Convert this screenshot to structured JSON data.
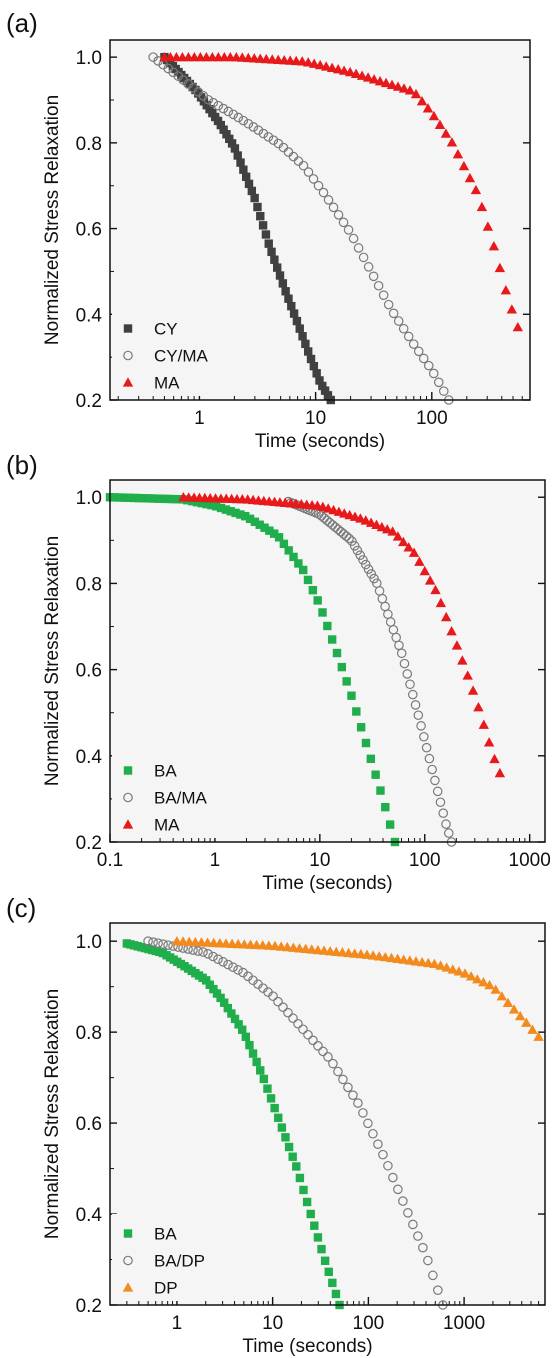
{
  "chart_data": [
    {
      "panel_label": "(a)",
      "type": "scatter",
      "xlabel": "Time (seconds)",
      "ylabel": "Normalized Stress Relaxation",
      "xscale": "log",
      "xlim": [
        0.17,
        700
      ],
      "ylim": [
        0.2,
        1.04
      ],
      "xticks": [
        1,
        10,
        100
      ],
      "xtick_labels": [
        "1",
        "10",
        "100"
      ],
      "yticks": [
        0.2,
        0.4,
        0.6,
        0.8,
        1.0
      ],
      "ytick_labels": [
        "0.2",
        "0.4",
        "0.6",
        "0.8",
        "1.0"
      ],
      "legend_position": "bottom-left",
      "series": [
        {
          "name": "CY",
          "marker": "square",
          "color": "#404040",
          "curve": [
            [
              0.5,
              1.0
            ],
            [
              0.95,
              0.92
            ],
            [
              1.5,
              0.845
            ],
            [
              2.0,
              0.79
            ],
            [
              3.0,
              0.67
            ],
            [
              4.0,
              0.56
            ],
            [
              5.5,
              0.455
            ],
            [
              7.0,
              0.38
            ],
            [
              9.0,
              0.3
            ],
            [
              11.0,
              0.24
            ],
            [
              13.5,
              0.2
            ]
          ]
        },
        {
          "name": "CY/MA",
          "marker": "circle-open",
          "color": "#7a7a7a",
          "curve": [
            [
              0.4,
              1.0
            ],
            [
              0.7,
              0.95
            ],
            [
              1.2,
              0.9
            ],
            [
              2.0,
              0.865
            ],
            [
              3.0,
              0.835
            ],
            [
              5.0,
              0.795
            ],
            [
              8.0,
              0.745
            ],
            [
              12.0,
              0.68
            ],
            [
              20.0,
              0.59
            ],
            [
              30.0,
              0.5
            ],
            [
              45.0,
              0.41
            ],
            [
              70.0,
              0.33
            ],
            [
              100.0,
              0.27
            ],
            [
              140.0,
              0.2
            ]
          ]
        },
        {
          "name": "MA",
          "marker": "triangle",
          "color": "#e8191b",
          "curve": [
            [
              0.5,
              1.0
            ],
            [
              2.0,
              1.0
            ],
            [
              8.0,
              0.99
            ],
            [
              20.0,
              0.965
            ],
            [
              40.0,
              0.94
            ],
            [
              70.0,
              0.92
            ],
            [
              100.0,
              0.87
            ],
            [
              150.0,
              0.8
            ],
            [
              250.0,
              0.68
            ],
            [
              350.0,
              0.55
            ],
            [
              450.0,
              0.44
            ],
            [
              550.0,
              0.37
            ]
          ]
        }
      ]
    },
    {
      "panel_label": "(b)",
      "type": "scatter",
      "xlabel": "Time (seconds)",
      "ylabel": "Normalized Stress Relaxation",
      "xscale": "log",
      "xlim": [
        0.1,
        1400
      ],
      "ylim": [
        0.2,
        1.04
      ],
      "xticks": [
        0.1,
        1,
        10,
        100,
        1000
      ],
      "xtick_labels": [
        "0.1",
        "1",
        "10",
        "100",
        "1000"
      ],
      "yticks": [
        0.2,
        0.4,
        0.6,
        0.8,
        1.0
      ],
      "ytick_labels": [
        "0.2",
        "0.4",
        "0.6",
        "0.8",
        "1.0"
      ],
      "legend_position": "bottom-left",
      "series": [
        {
          "name": "BA",
          "marker": "square",
          "color": "#1fae4b",
          "curve": [
            [
              0.1,
              1.0
            ],
            [
              0.5,
              0.995
            ],
            [
              1.0,
              0.98
            ],
            [
              2.0,
              0.955
            ],
            [
              4.0,
              0.91
            ],
            [
              7.0,
              0.83
            ],
            [
              10.0,
              0.75
            ],
            [
              15.0,
              0.63
            ],
            [
              20.0,
              0.54
            ],
            [
              30.0,
              0.4
            ],
            [
              40.0,
              0.3
            ],
            [
              52.0,
              0.2
            ]
          ]
        },
        {
          "name": "BA/MA",
          "marker": "circle-open",
          "color": "#7a7a7a",
          "curve": [
            [
              5.0,
              0.99
            ],
            [
              10.0,
              0.96
            ],
            [
              20.0,
              0.9
            ],
            [
              35.0,
              0.8
            ],
            [
              60.0,
              0.64
            ],
            [
              90.0,
              0.48
            ],
            [
              120.0,
              0.36
            ],
            [
              160.0,
              0.24
            ],
            [
              180.0,
              0.2
            ]
          ]
        },
        {
          "name": "MA",
          "marker": "triangle",
          "color": "#e8191b",
          "curve": [
            [
              0.5,
              1.0
            ],
            [
              2.0,
              0.995
            ],
            [
              10.0,
              0.98
            ],
            [
              25.0,
              0.95
            ],
            [
              50.0,
              0.92
            ],
            [
              80.0,
              0.87
            ],
            [
              130.0,
              0.78
            ],
            [
              200.0,
              0.66
            ],
            [
              300.0,
              0.54
            ],
            [
              450.0,
              0.4
            ],
            [
              520.0,
              0.36
            ]
          ]
        }
      ]
    },
    {
      "panel_label": "(c)",
      "type": "scatter",
      "xlabel": "Time (seconds)",
      "ylabel": "Normalized Stress Relaxation",
      "xscale": "log",
      "xlim": [
        0.2,
        7000
      ],
      "ylim": [
        0.2,
        1.04
      ],
      "xticks": [
        1,
        10,
        100,
        1000
      ],
      "xtick_labels": [
        "1",
        "10",
        "100",
        "1000"
      ],
      "yticks": [
        0.2,
        0.4,
        0.6,
        0.8,
        1.0
      ],
      "ytick_labels": [
        "0.2",
        "0.4",
        "0.6",
        "0.8",
        "1.0"
      ],
      "legend_position": "bottom-left",
      "series": [
        {
          "name": "BA",
          "marker": "square",
          "color": "#1fae4b",
          "curve": [
            [
              0.3,
              0.995
            ],
            [
              0.7,
              0.975
            ],
            [
              1.2,
              0.945
            ],
            [
              2.0,
              0.915
            ],
            [
              3.0,
              0.87
            ],
            [
              5.0,
              0.8
            ],
            [
              8.0,
              0.7
            ],
            [
              12.0,
              0.6
            ],
            [
              18.0,
              0.5
            ],
            [
              25.0,
              0.4
            ],
            [
              35.0,
              0.3
            ],
            [
              50.0,
              0.2
            ]
          ]
        },
        {
          "name": "BA/DP",
          "marker": "circle-open",
          "color": "#7a7a7a",
          "curve": [
            [
              0.5,
              1.0
            ],
            [
              2.0,
              0.975
            ],
            [
              5.0,
              0.93
            ],
            [
              10.0,
              0.88
            ],
            [
              20.0,
              0.81
            ],
            [
              40.0,
              0.74
            ],
            [
              80.0,
              0.64
            ],
            [
              150.0,
              0.52
            ],
            [
              250.0,
              0.41
            ],
            [
              400.0,
              0.31
            ],
            [
              600.0,
              0.2
            ]
          ]
        },
        {
          "name": "DP",
          "marker": "triangle",
          "color": "#f28a1e",
          "curve": [
            [
              1.0,
              1.0
            ],
            [
              10.0,
              0.99
            ],
            [
              100.0,
              0.97
            ],
            [
              500.0,
              0.95
            ],
            [
              1000.0,
              0.93
            ],
            [
              2000.0,
              0.9
            ],
            [
              3000.0,
              0.86
            ],
            [
              4500.0,
              0.82
            ],
            [
              6000.0,
              0.79
            ]
          ]
        }
      ]
    }
  ]
}
